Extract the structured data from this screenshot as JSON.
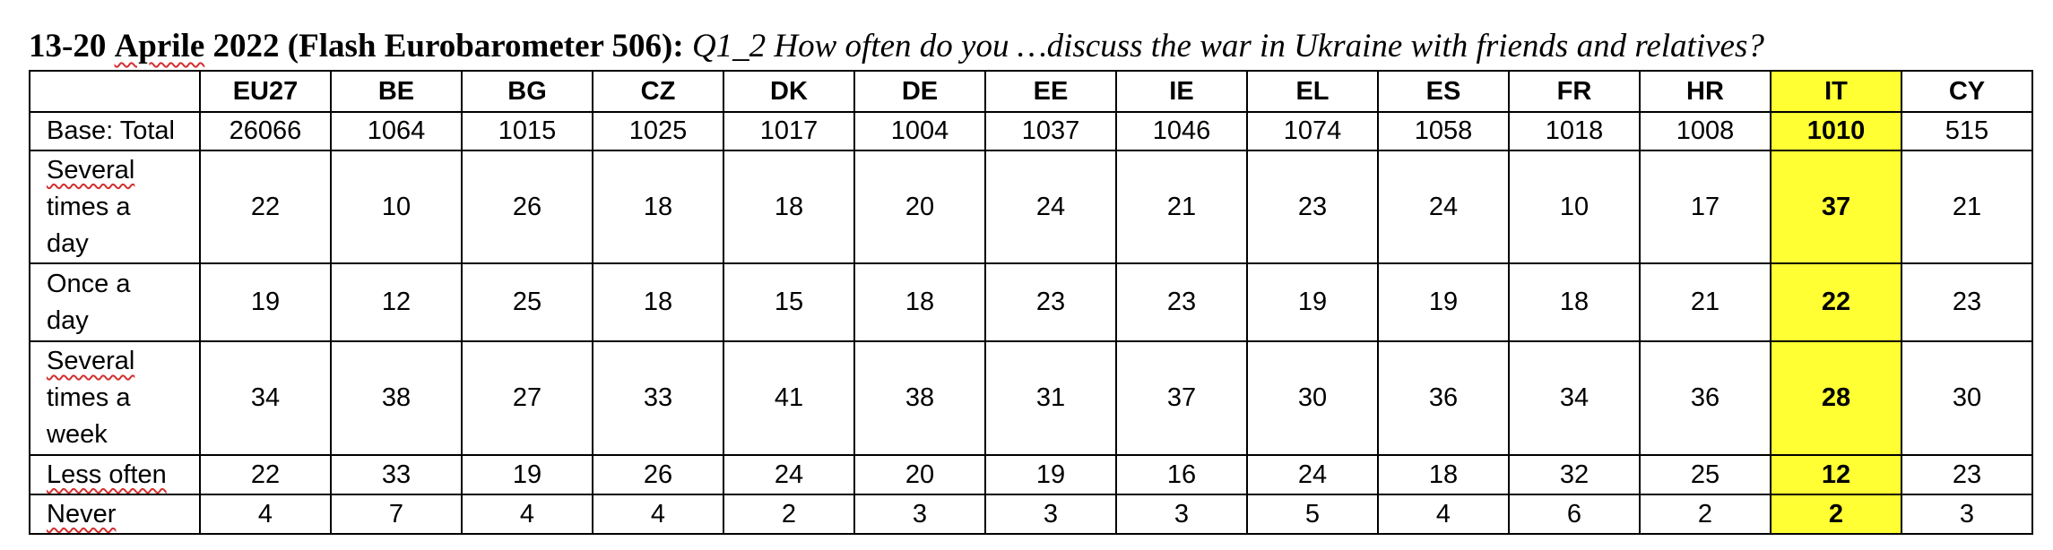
{
  "title": {
    "date": "13-20",
    "month": "Aprile",
    "rest": " 2022 (Flash Eurobarometer 506):",
    "question": " Q1_2 How often do you …discuss the war in Ukraine with friends and relatives?"
  },
  "table": {
    "corner": "",
    "columns": [
      "EU27",
      "BE",
      "BG",
      "CZ",
      "DK",
      "DE",
      "EE",
      "IE",
      "EL",
      "ES",
      "FR",
      "HR",
      "IT",
      "CY"
    ],
    "highlight_column": "IT",
    "highlight_color": "#ffff33",
    "rows": [
      {
        "label": "Base: Total",
        "values": [
          "26066",
          "1064",
          "1015",
          "1025",
          "1017",
          "1004",
          "1037",
          "1046",
          "1074",
          "1058",
          "1018",
          "1008",
          "1010",
          "515"
        ]
      },
      {
        "label_lines": [
          "Several",
          "times a",
          "day"
        ],
        "values": [
          "22",
          "10",
          "26",
          "18",
          "18",
          "20",
          "24",
          "21",
          "23",
          "24",
          "10",
          "17",
          "37",
          "21"
        ]
      },
      {
        "label_lines": [
          "Once a",
          "day"
        ],
        "values": [
          "19",
          "12",
          "25",
          "18",
          "15",
          "18",
          "23",
          "23",
          "19",
          "19",
          "18",
          "21",
          "22",
          "23"
        ]
      },
      {
        "label_lines": [
          "Several",
          "times a",
          "week"
        ],
        "values": [
          "34",
          "38",
          "27",
          "33",
          "41",
          "38",
          "31",
          "37",
          "30",
          "36",
          "34",
          "36",
          "28",
          "30"
        ]
      },
      {
        "label": "Less often",
        "values": [
          "22",
          "33",
          "19",
          "26",
          "24",
          "20",
          "19",
          "16",
          "24",
          "18",
          "32",
          "25",
          "12",
          "23"
        ]
      },
      {
        "label": "Never",
        "values": [
          "4",
          "7",
          "4",
          "4",
          "2",
          "3",
          "3",
          "3",
          "5",
          "4",
          "6",
          "2",
          "2",
          "3"
        ]
      }
    ]
  }
}
